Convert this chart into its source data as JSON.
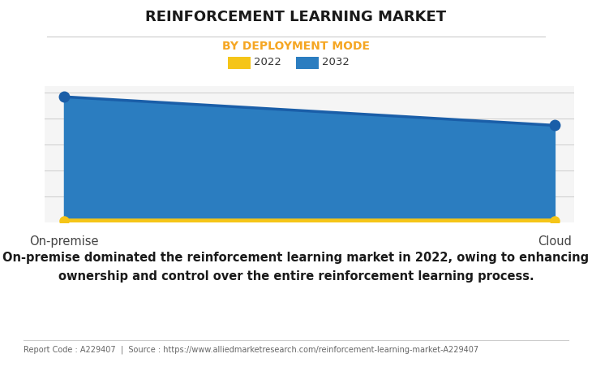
{
  "title": "REINFORCEMENT LEARNING MARKET",
  "subtitle": "BY DEPLOYMENT MODE",
  "subtitle_color": "#F5A623",
  "categories": [
    "On-premise",
    "Cloud"
  ],
  "series_2022": [
    0.015,
    0.015
  ],
  "series_2032": [
    0.97,
    0.75
  ],
  "color_2022": "#F5C518",
  "color_2032": "#2B7DC0",
  "marker_color_2032": "#1A5EA8",
  "legend_labels": [
    "2022",
    "2032"
  ],
  "annotation_line1": "On-premise dominated the reinforcement learning market in 2022, owing to enhancing",
  "annotation_line2": "ownership and control over the entire reinforcement learning process.",
  "footer": "Report Code : A229407  |  Source : https://www.alliedmarketresearch.com/reinforcement-learning-market-A229407",
  "background_color": "#FFFFFF",
  "plot_bg_color": "#F5F5F5",
  "title_fontsize": 13,
  "subtitle_fontsize": 10,
  "annotation_fontsize": 10.5,
  "footer_fontsize": 7
}
